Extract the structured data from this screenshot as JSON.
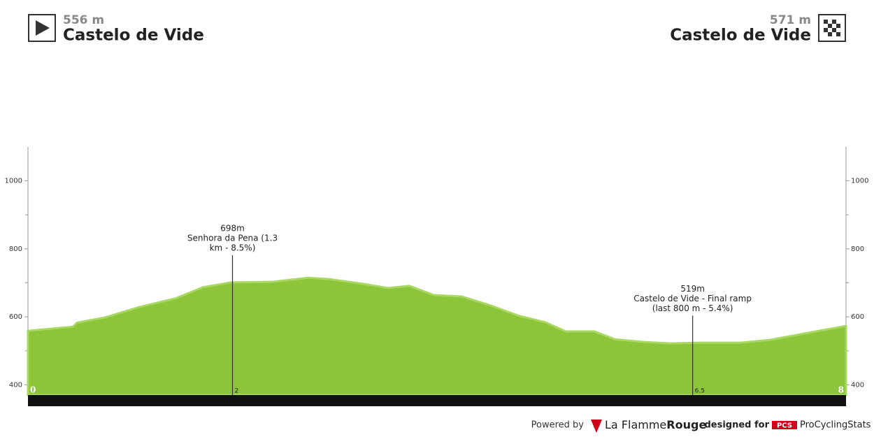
{
  "header": {
    "start": {
      "altitude": "556 m",
      "name": "Castelo de Vide"
    },
    "finish": {
      "altitude": "571 m",
      "name": "Castelo de Vide"
    }
  },
  "chart_data": {
    "type": "area",
    "x": [
      0,
      0.44,
      0.48,
      0.75,
      1.09,
      1.44,
      1.71,
      1.98,
      2.39,
      2.74,
      2.94,
      3.28,
      3.52,
      3.73,
      3.97,
      4.24,
      4.51,
      4.79,
      5.06,
      5.26,
      5.54,
      5.74,
      6.02,
      6.29,
      6.56,
      6.97,
      7.25,
      7.59,
      8
    ],
    "series": [
      {
        "color": "#8cc43a",
        "values": [
          559,
          571,
          583,
          598,
          629,
          654,
          687,
          701,
          703,
          715,
          711,
          697,
          685,
          691,
          664,
          660,
          635,
          604,
          584,
          557,
          557,
          534,
          526,
          522,
          524,
          524,
          532,
          551,
          573
        ]
      }
    ],
    "xlim": [
      0,
      8
    ],
    "xticks": [
      0,
      8
    ],
    "ylim": [
      370,
      1100
    ],
    "yticks": [
      400,
      600,
      800,
      1000
    ],
    "yminor": [
      500,
      700,
      900
    ],
    "climbs": [
      {
        "x": 2,
        "lines": [
          "698m",
          "Senhora da Pena (1.3",
          "km - 8.5%)"
        ]
      },
      {
        "x": 6.5,
        "lines": [
          "519m",
          "Castelo de Vide - Final ramp",
          "(last 800 m - 5.4%)"
        ]
      }
    ]
  },
  "footer": {
    "powered": "Powered by",
    "brand1": "La Flamme",
    "brand2": "Rouge",
    "designed": "designed for",
    "pcs": "PCS",
    "site": "ProCyclingStats"
  }
}
